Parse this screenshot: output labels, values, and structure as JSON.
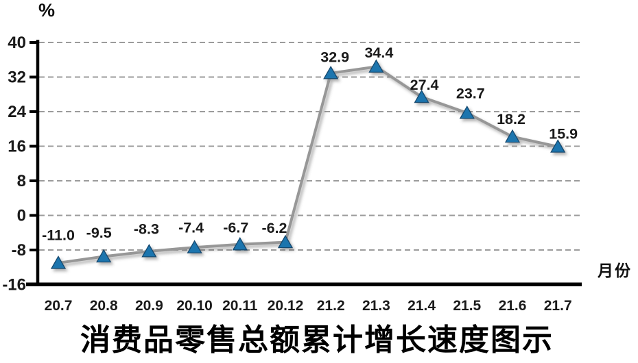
{
  "chart_data": {
    "type": "line",
    "title": "消费品零售总额累计增长速度图示",
    "y_unit_label": "%",
    "x_axis_title": "月份",
    "categories": [
      "20.7",
      "20.8",
      "20.9",
      "20.10",
      "20.11",
      "20.12",
      "21.2",
      "21.3",
      "21.4",
      "21.5",
      "21.6",
      "21.7"
    ],
    "values": [
      -11.0,
      -9.5,
      -8.3,
      -7.4,
      -6.7,
      -6.2,
      32.9,
      34.4,
      27.4,
      23.7,
      18.2,
      15.9
    ],
    "data_labels": [
      "-11.0",
      "-9.5",
      "-8.3",
      "-7.4",
      "-6.7",
      "-6.2",
      "32.9",
      "34.4",
      "27.4",
      "23.7",
      "18.2",
      "15.9"
    ],
    "y_ticks": [
      40,
      32,
      24,
      16,
      8,
      0,
      -8,
      -16
    ],
    "ylim": [
      -16,
      40
    ],
    "grid": "horizontal-dashed",
    "legend": "none",
    "colors": {
      "line": "#979797",
      "marker_fill": "#1C75AE",
      "marker_stroke": "#16486E",
      "gridline": "#9b9b9b",
      "axis": "#000000",
      "tick_text": "#1a1a1a",
      "data_label_text": "#1a1a1a"
    },
    "marker_shape": "triangle"
  }
}
